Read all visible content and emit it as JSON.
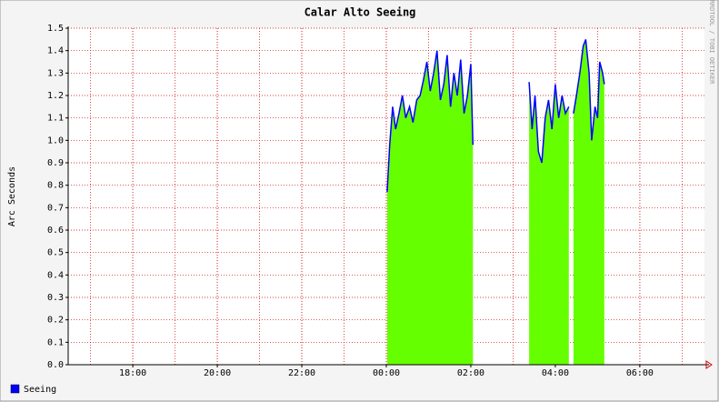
{
  "chart_data": {
    "type": "area",
    "title": "Calar Alto Seeing",
    "y_label": "Arc Seconds",
    "watermark": "RRDTOOL / TOBI OETIKER",
    "x": [
      24.02,
      24.08,
      24.15,
      24.22,
      24.3,
      24.38,
      24.46,
      24.55,
      24.63,
      24.72,
      24.8,
      24.88,
      24.96,
      25.04,
      25.12,
      25.2,
      25.28,
      25.36,
      25.44,
      25.52,
      25.6,
      25.68,
      25.76,
      25.84,
      25.92,
      26.0,
      26.05,
      26.7,
      27.38,
      27.45,
      27.52,
      27.6,
      27.68,
      27.76,
      27.84,
      27.92,
      28.0,
      28.08,
      28.16,
      28.24,
      28.32,
      28.38,
      28.43,
      28.5,
      28.58,
      28.66,
      28.72,
      28.8,
      28.86,
      28.94,
      29.0,
      29.05,
      29.12,
      29.16
    ],
    "series": [
      {
        "name": "Seeing",
        "color": "#0000ff",
        "fill": "#66ff00",
        "values": [
          0.77,
          0.98,
          1.15,
          1.05,
          1.12,
          1.2,
          1.1,
          1.15,
          1.08,
          1.18,
          1.2,
          1.27,
          1.35,
          1.22,
          1.3,
          1.4,
          1.18,
          1.25,
          1.38,
          1.15,
          1.3,
          1.2,
          1.36,
          1.12,
          1.2,
          1.34,
          0.98,
          null,
          1.26,
          1.05,
          1.2,
          0.95,
          0.9,
          1.1,
          1.18,
          1.05,
          1.25,
          1.1,
          1.2,
          1.12,
          1.15,
          null,
          1.12,
          1.2,
          1.3,
          1.42,
          1.45,
          1.3,
          1.0,
          1.15,
          1.1,
          1.35,
          1.3,
          1.25
        ]
      }
    ],
    "xlim": [
      16.47,
      31.53
    ],
    "xticks": [
      {
        "value": 18,
        "label": "18:00"
      },
      {
        "value": 20,
        "label": "20:00"
      },
      {
        "value": 22,
        "label": "22:00"
      },
      {
        "value": 24,
        "label": "00:00"
      },
      {
        "value": 26,
        "label": "02:00"
      },
      {
        "value": 28,
        "label": "04:00"
      },
      {
        "value": 30,
        "label": "06:00"
      }
    ],
    "ylim": [
      0,
      1.5
    ],
    "yticks": [
      {
        "value": 0,
        "label": "0.0"
      },
      0.1,
      0.2,
      0.3,
      0.4,
      0.5,
      0.6,
      0.7,
      0.8,
      0.9,
      {
        "value": 1,
        "label": "1.0"
      },
      1.1,
      1.2,
      1.3,
      1.4,
      1.5
    ],
    "grid": true
  }
}
